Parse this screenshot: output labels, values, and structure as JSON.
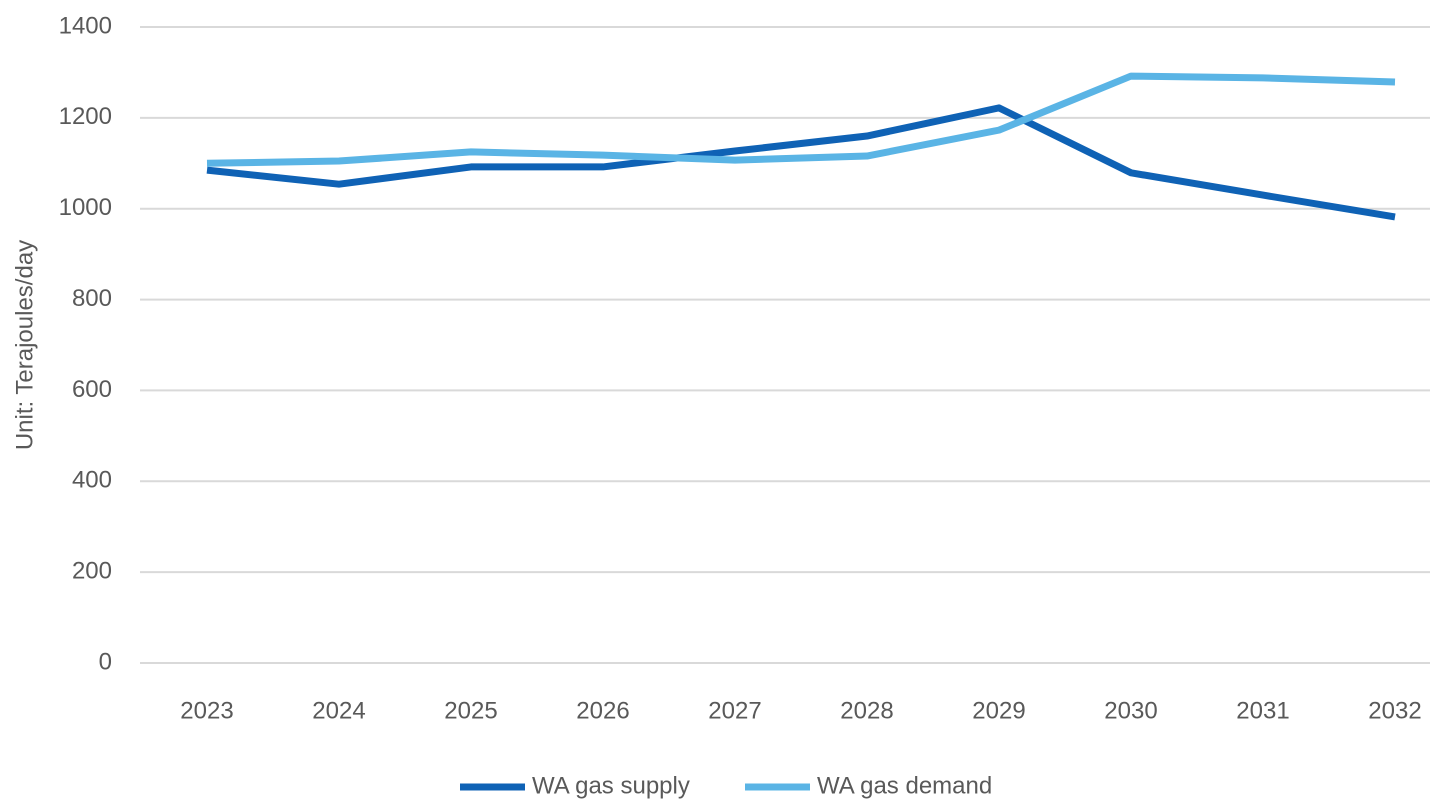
{
  "chart_data": {
    "type": "line",
    "y_label": "Unit: Terajoules/day",
    "categories": [
      "2023",
      "2024",
      "2025",
      "2026",
      "2027",
      "2028",
      "2029",
      "2030",
      "2031",
      "2032"
    ],
    "series": [
      {
        "name": "WA gas supply",
        "color": "#0f62b5",
        "values": [
          1085,
          1054,
          1092,
          1092,
          1127,
          1160,
          1222,
          1079,
          1030,
          982
        ]
      },
      {
        "name": "WA gas demand",
        "color": "#5ab4e5",
        "values": [
          1100,
          1105,
          1125,
          1118,
          1107,
          1116,
          1173,
          1292,
          1288,
          1279
        ]
      }
    ],
    "ylim": [
      0,
      1400
    ],
    "yticks": [
      0,
      200,
      400,
      600,
      800,
      1000,
      1200,
      1400
    ],
    "grid": true,
    "legend": "bottom"
  }
}
